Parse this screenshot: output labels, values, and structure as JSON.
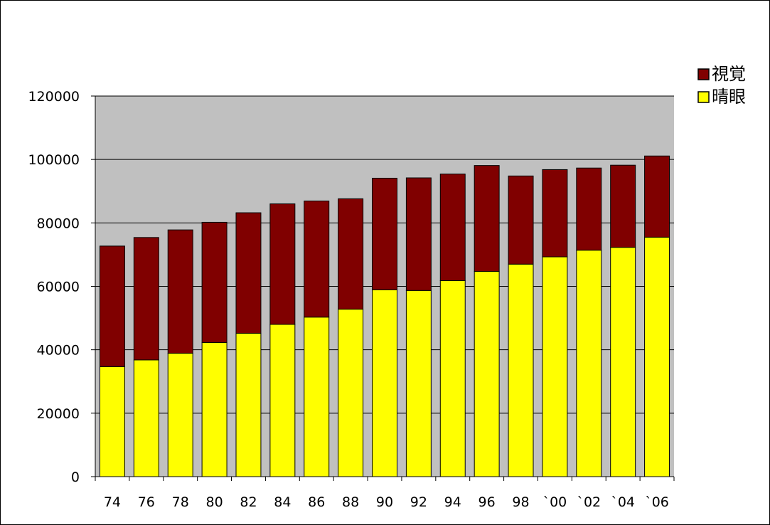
{
  "chart_data": {
    "type": "bar",
    "stacked": true,
    "categories": [
      "74",
      "76",
      "78",
      "80",
      "82",
      "84",
      "86",
      "88",
      "90",
      "92",
      "94",
      "96",
      "98",
      "`00",
      "`02",
      "`04",
      "`06"
    ],
    "series": [
      {
        "name": "晴眼",
        "color": "#ffff00",
        "values": [
          34700,
          36800,
          38900,
          42300,
          45200,
          48000,
          50300,
          52800,
          58900,
          58700,
          61800,
          64700,
          67000,
          69300,
          71400,
          72300,
          75500
        ]
      },
      {
        "name": "視覚",
        "color": "#800000",
        "values": [
          38000,
          38600,
          38900,
          37900,
          38000,
          38000,
          36600,
          34800,
          35200,
          35500,
          33600,
          33400,
          27800,
          27500,
          25900,
          25900,
          25600
        ]
      }
    ],
    "yticks": [
      0,
      20000,
      40000,
      60000,
      80000,
      100000,
      120000
    ],
    "ylim": [
      0,
      120000
    ],
    "grid": true,
    "plot_background": "#c0c0c0",
    "legend_position": "top-right",
    "legend_order": [
      "視覚",
      "晴眼"
    ],
    "title": "",
    "xlabel": "",
    "ylabel": ""
  }
}
